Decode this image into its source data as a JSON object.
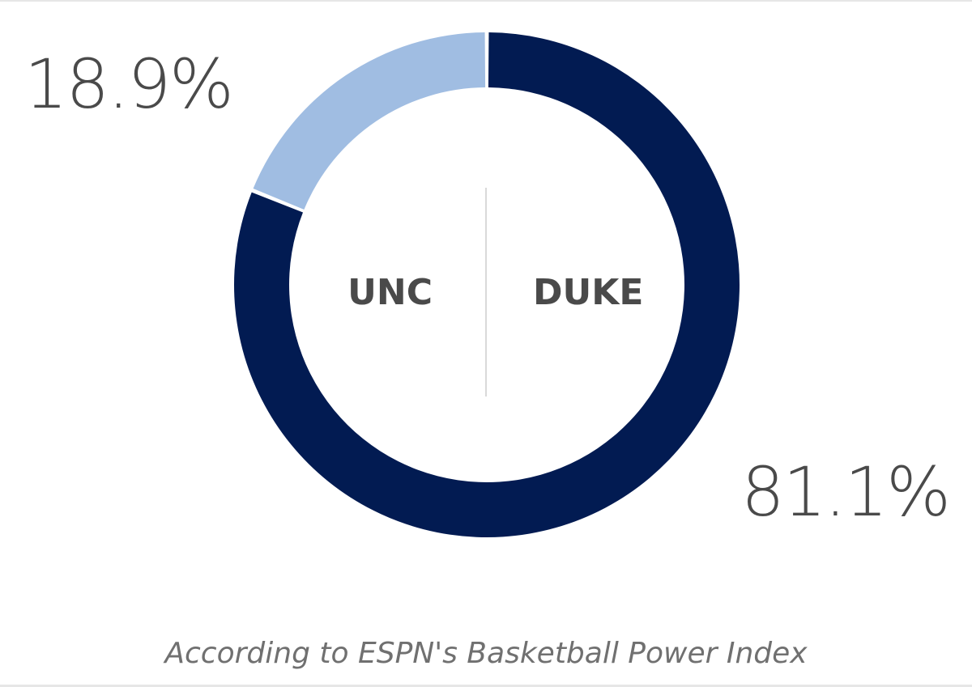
{
  "colors": {
    "unc": "#a0bde2",
    "duke": "#021b52",
    "text": "#4a4a4a"
  },
  "labels": {
    "unc_pct": "18.9%",
    "duke_pct": "81.1%",
    "unc_team": "UNC",
    "duke_team": "DUKE",
    "source": "According to ESPN's Basketball Power Index"
  },
  "chart_data": {
    "type": "pie",
    "variant": "donut",
    "categories": [
      "UNC",
      "DUKE"
    ],
    "values": [
      18.9,
      81.1
    ],
    "data_labels": [
      "18.9%",
      "81.1%"
    ],
    "colors": [
      "#a0bde2",
      "#021b52"
    ],
    "legend": "none",
    "footnote": "According to ESPN's Basketball Power Index"
  }
}
